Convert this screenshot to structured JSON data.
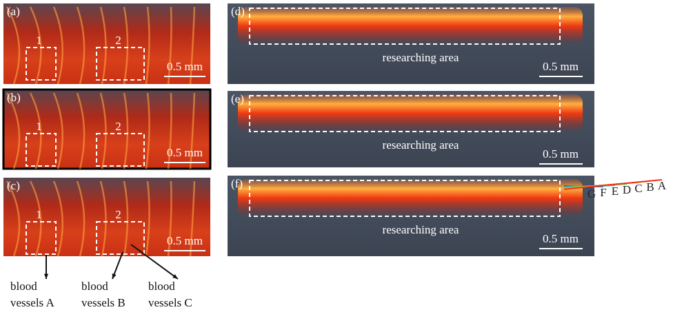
{
  "left_panels": [
    {
      "label": "(a)",
      "boxes": [
        "1",
        "2"
      ],
      "scale": "0.5 mm"
    },
    {
      "label": "(b)",
      "boxes": [
        "1",
        "2"
      ],
      "scale": "0.5 mm"
    },
    {
      "label": "(c)",
      "boxes": [
        "1",
        "2"
      ],
      "scale": "0.5 mm"
    }
  ],
  "right_panels": [
    {
      "label": "(d)",
      "area": "researching area",
      "scale": "0.5 mm"
    },
    {
      "label": "(e)",
      "area": "researching area",
      "scale": "0.5 mm"
    },
    {
      "label": "(f)",
      "area": "researching area",
      "scale": "0.5 mm"
    }
  ],
  "vessels": [
    {
      "line1": "blood",
      "line2": "vessels A"
    },
    {
      "line1": "blood",
      "line2": "vessels B"
    },
    {
      "line1": "blood",
      "line2": "vessels C"
    }
  ],
  "layers": [
    "G",
    "F",
    "E",
    "D",
    "C",
    "B",
    "A"
  ]
}
